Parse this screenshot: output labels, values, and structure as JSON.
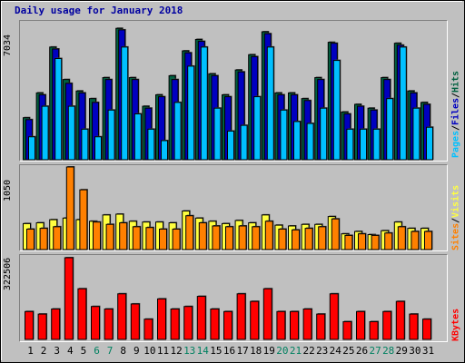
{
  "chart_data": {
    "type": "bar",
    "title": "Daily usage for January 2018",
    "days": [
      "1",
      "2",
      "3",
      "4",
      "5",
      "6",
      "7",
      "8",
      "9",
      "10",
      "11",
      "12",
      "13",
      "14",
      "15",
      "16",
      "17",
      "18",
      "19",
      "20",
      "21",
      "22",
      "23",
      "24",
      "25",
      "26",
      "27",
      "28",
      "29",
      "30",
      "31"
    ],
    "weekend_days": [
      "6",
      "7",
      "13",
      "14",
      "20",
      "21",
      "27",
      "28"
    ],
    "colors": {
      "title": "#0000a0",
      "hits": "#006040",
      "files": "#0000c0",
      "pages": "#00c0ff",
      "visits": "#ffff40",
      "sites": "#ff8000",
      "kbytes": "#ff0000",
      "weekday_label": "#000000",
      "weekend_label": "#008060"
    },
    "panels": [
      {
        "name": "hits-files-pages",
        "ymax_label": "7034",
        "ymax": 7034,
        "series": [
          {
            "name": "Hits",
            "color": "#006040",
            "values": [
              2200,
              3500,
              5900,
              4200,
              3600,
              3200,
              4300,
              6880,
              4300,
              2800,
              3400,
              4400,
              5700,
              6300,
              4500,
              3400,
              4700,
              5500,
              6700,
              3500,
              3500,
              3200,
              4300,
              6150,
              2500,
              2900,
              2700,
              4300,
              6100,
              3600,
              3000
            ]
          },
          {
            "name": "Files",
            "color": "#0000c0",
            "values": [
              2100,
              3400,
              5800,
              4000,
              3500,
              3000,
              4200,
              6800,
              4200,
              2700,
              3300,
              4200,
              5600,
              6200,
              4400,
              3300,
              4600,
              5400,
              6600,
              3400,
              3400,
              3100,
              4200,
              6100,
              2400,
              2800,
              2600,
              4200,
              6000,
              3500,
              2900
            ]
          },
          {
            "name": "Pages",
            "color": "#00c0ff",
            "values": [
              1200,
              2800,
              5300,
              2800,
              1600,
              1200,
              2600,
              5900,
              2400,
              1600,
              1000,
              3000,
              4900,
              5900,
              2700,
              1500,
              1800,
              3300,
              5900,
              2600,
              2000,
              1900,
              2700,
              5200,
              1600,
              1600,
              1600,
              3200,
              5900,
              2700,
              1700
            ]
          }
        ],
        "right_label": [
          {
            "text": "Pages",
            "color": "#00c0ff"
          },
          {
            "text": " / ",
            "color": "#000000"
          },
          {
            "text": "Files",
            "color": "#0000c0"
          },
          {
            "text": " / ",
            "color": "#000000"
          },
          {
            "text": "Hits",
            "color": "#006040"
          }
        ]
      },
      {
        "name": "visits-sites",
        "ymax_label": "1050",
        "ymax": 1050,
        "series": [
          {
            "name": "Visits",
            "color": "#ffff40",
            "values": [
              330,
              340,
              380,
              400,
              380,
              360,
              440,
              450,
              360,
              350,
              350,
              340,
              490,
              400,
              360,
              330,
              370,
              340,
              440,
              310,
              300,
              320,
              320,
              420,
              200,
              230,
              190,
              240,
              350,
              270,
              270
            ]
          },
          {
            "name": "Sites",
            "color": "#ff8000",
            "values": [
              260,
              270,
              290,
              1050,
              760,
              350,
              320,
              340,
              290,
              280,
              260,
              260,
              430,
              340,
              300,
              290,
              300,
              290,
              360,
              260,
              250,
              270,
              290,
              390,
              180,
              200,
              180,
              210,
              290,
              230,
              230
            ]
          }
        ],
        "right_label": [
          {
            "text": "Sites",
            "color": "#ff8000"
          },
          {
            "text": " / ",
            "color": "#000000"
          },
          {
            "text": "Visits",
            "color": "#ffff40"
          }
        ]
      },
      {
        "name": "kbytes",
        "ymax_label": "322506",
        "ymax": 322506,
        "series": [
          {
            "name": "KBytes",
            "color": "#ff0000",
            "values": [
              110000,
              100000,
              120000,
              322506,
              200000,
              130000,
              120000,
              180000,
              140000,
              80000,
              160000,
              120000,
              130000,
              170000,
              120000,
              110000,
              180000,
              150000,
              200000,
              110000,
              110000,
              120000,
              100000,
              180000,
              70000,
              110000,
              70000,
              110000,
              150000,
              100000,
              80000
            ]
          }
        ],
        "right_label": [
          {
            "text": "KBytes",
            "color": "#ff0000"
          }
        ]
      }
    ]
  }
}
